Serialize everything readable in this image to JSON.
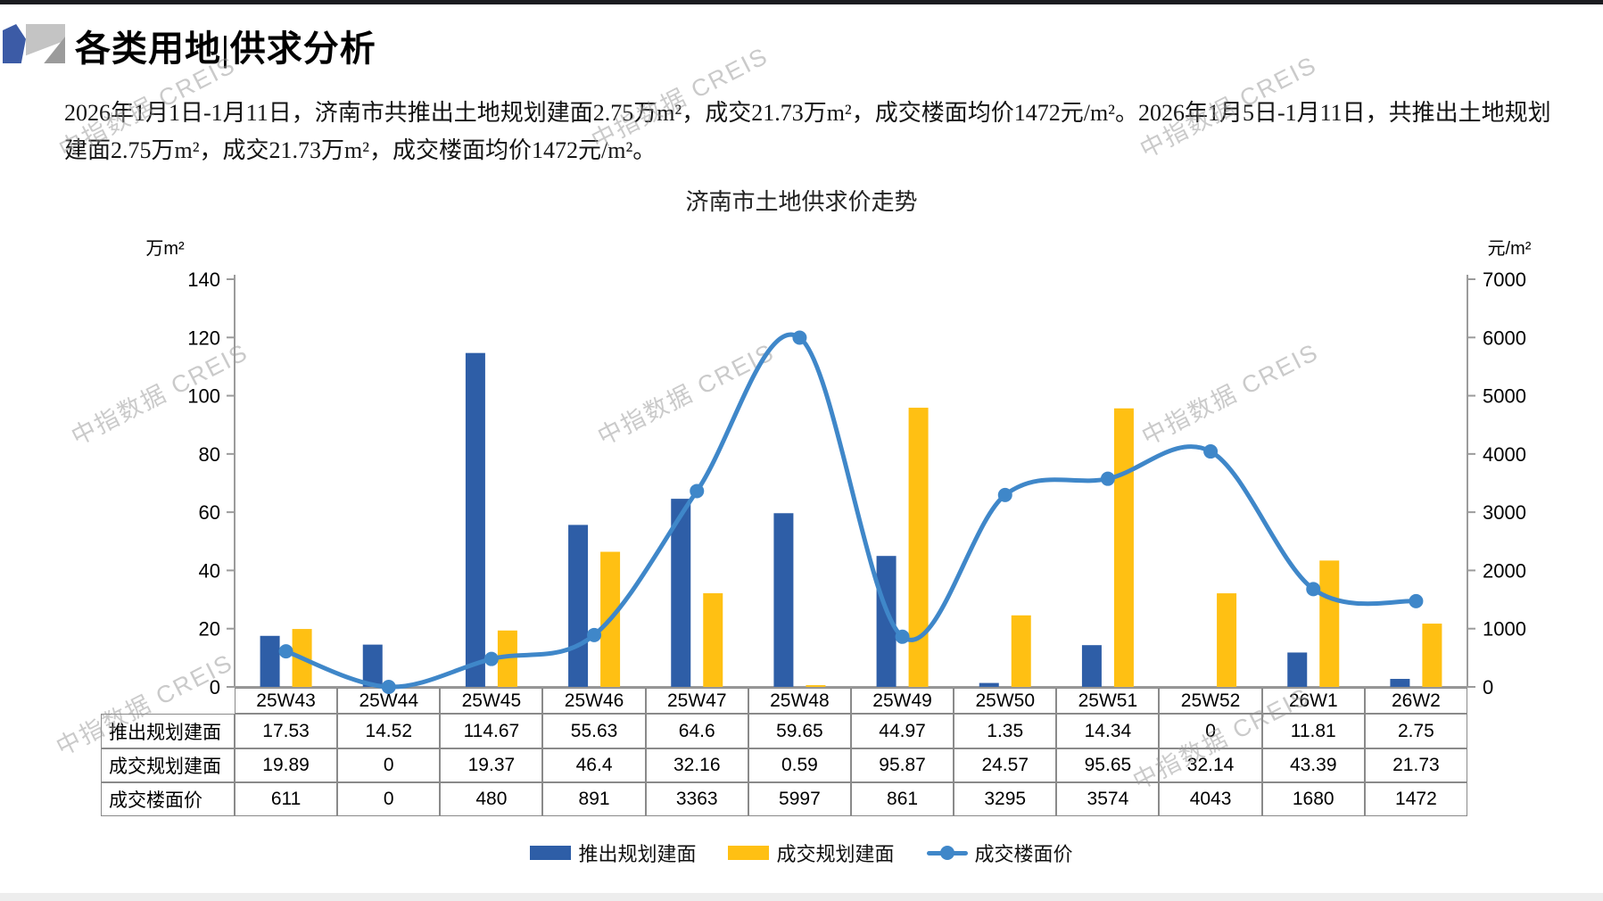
{
  "page": {
    "title": "各类用地|供求分析",
    "summary": "2026年1月1日-1月11日，济南市共推出土地规划建面2.75万m²，成交21.73万m²，成交楼面均价1472元/m²。2026年1月5日-1月11日，共推出土地规划建面2.75万m²，成交21.73万m²，成交楼面均价1472元/m²。",
    "watermark_text": "中指数据 CREIS"
  },
  "chart_data": {
    "type": "combo",
    "title": "济南市土地供求价走势",
    "categories": [
      "25W43",
      "25W44",
      "25W45",
      "25W46",
      "25W47",
      "25W48",
      "25W49",
      "25W50",
      "25W51",
      "25W52",
      "26W1",
      "26W2"
    ],
    "series": [
      {
        "name": "推出规划建面",
        "type": "bar",
        "axis": "left",
        "color": "#2E5EA7",
        "values": [
          17.53,
          14.52,
          114.67,
          55.63,
          64.6,
          59.65,
          44.97,
          1.35,
          14.34,
          0,
          11.81,
          2.75
        ]
      },
      {
        "name": "成交规划建面",
        "type": "bar",
        "axis": "left",
        "color": "#FFC013",
        "values": [
          19.89,
          0,
          19.37,
          46.4,
          32.16,
          0.59,
          95.87,
          24.57,
          95.65,
          32.14,
          43.39,
          21.73
        ]
      },
      {
        "name": "成交楼面价",
        "type": "line",
        "axis": "right",
        "color": "#3F87C9",
        "values": [
          611,
          0,
          480,
          891,
          3363,
          5997,
          861,
          3295,
          3574,
          4043,
          1680,
          1472
        ]
      }
    ],
    "left_axis": {
      "unit": "万m²",
      "min": 0,
      "max": 140,
      "step": 20
    },
    "right_axis": {
      "unit": "元/m²",
      "min": 0,
      "max": 7000,
      "step": 1000
    },
    "grid": false,
    "legend_position": "bottom",
    "axis_color": "#9b9b9b",
    "text_color": "#000000"
  }
}
